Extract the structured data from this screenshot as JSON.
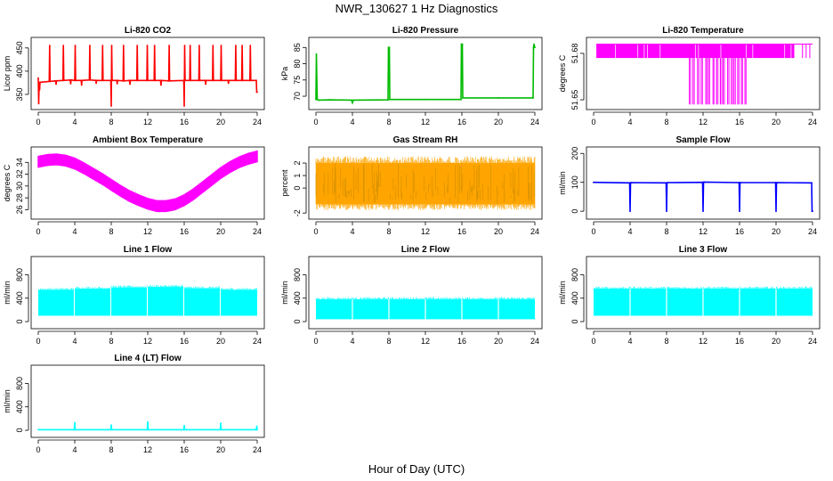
{
  "page": {
    "title": "NWR_130627  1 Hz Diagnostics",
    "xlabel": "Hour of Day (UTC)"
  },
  "chart_data": [
    {
      "type": "line",
      "title": "Li-820 CO2",
      "ylabel": "Licor ppm",
      "color": "#ff0000",
      "xlim": [
        0,
        24
      ],
      "xticks": [
        "0",
        "4",
        "8",
        "12",
        "16",
        "20",
        "24"
      ],
      "ylim": [
        325,
        465
      ],
      "yticks": [
        "350",
        "400",
        "450"
      ],
      "x": [
        0,
        0.05,
        0.1,
        0.15,
        0.2,
        1.2,
        1.25,
        1.3,
        1.9,
        1.95,
        2.0,
        2.7,
        2.75,
        2.8,
        3.5,
        3.55,
        3.6,
        4.0,
        4.05,
        4.1,
        4.7,
        4.75,
        4.8,
        5.6,
        5.65,
        5.7,
        6.3,
        6.35,
        6.4,
        7.0,
        7.05,
        7.1,
        7.95,
        8.0,
        8.05,
        8.1,
        8.6,
        8.65,
        8.7,
        9.3,
        9.35,
        9.4,
        10.0,
        10.05,
        10.1,
        10.8,
        10.85,
        10.9,
        11.9,
        11.95,
        12.0,
        12.7,
        12.75,
        12.8,
        13.4,
        13.45,
        13.5,
        14.3,
        14.35,
        14.4,
        15.95,
        16.0,
        16.05,
        16.1,
        16.6,
        16.65,
        16.7,
        17.6,
        17.65,
        17.7,
        18.3,
        18.35,
        18.4,
        19.1,
        19.15,
        19.2,
        20.0,
        20.05,
        20.1,
        20.8,
        20.85,
        20.9,
        21.6,
        21.65,
        21.7,
        22.3,
        22.35,
        22.4,
        23.2,
        23.25,
        23.3,
        23.9,
        23.95,
        24.0
      ],
      "y": [
        385,
        330,
        375,
        360,
        376,
        378,
        455,
        378,
        379,
        372,
        379,
        380,
        455,
        380,
        381,
        373,
        381,
        380,
        455,
        380,
        380,
        370,
        380,
        381,
        455,
        381,
        380,
        374,
        380,
        380,
        455,
        380,
        380,
        325,
        455,
        380,
        380,
        373,
        380,
        379,
        455,
        379,
        380,
        372,
        380,
        380,
        455,
        380,
        380,
        455,
        380,
        380,
        455,
        380,
        380,
        370,
        380,
        379,
        455,
        379,
        380,
        325,
        455,
        380,
        380,
        455,
        380,
        380,
        455,
        380,
        380,
        372,
        380,
        380,
        455,
        380,
        380,
        455,
        380,
        380,
        374,
        380,
        380,
        455,
        380,
        380,
        455,
        380,
        380,
        455,
        380,
        380,
        355,
        355
      ]
    },
    {
      "type": "line",
      "title": "Li-820 Pressure",
      "ylabel": "kPa",
      "color": "#00bb00",
      "xlim": [
        0,
        24
      ],
      "xticks": [
        "0",
        "4",
        "8",
        "12",
        "16",
        "20",
        "24"
      ],
      "ylim": [
        67,
        87
      ],
      "yticks": [
        "70",
        "75",
        "80",
        "85"
      ],
      "x": [
        0,
        0.05,
        0.1,
        0.15,
        0.3,
        1.5,
        3.9,
        4.0,
        4.1,
        7.9,
        7.95,
        8.05,
        8.1,
        12,
        15.9,
        15.95,
        16.0,
        16.05,
        16.1,
        20,
        23.8,
        23.85,
        23.9,
        24.0
      ],
      "y": [
        69,
        83,
        75,
        69,
        68.8,
        68.9,
        68.8,
        68,
        68.8,
        68.9,
        85,
        85,
        69,
        69,
        69,
        86,
        86,
        86,
        69.5,
        69.5,
        69.5,
        85,
        86,
        85
      ]
    },
    {
      "type": "line",
      "title": "Li-820 Temperature",
      "ylabel": "degrees C",
      "color": "#ff00ff",
      "xlim": [
        0,
        24
      ],
      "xticks": [
        "0",
        "4",
        "8",
        "12",
        "16",
        "20",
        "24"
      ],
      "ylim": [
        51.646,
        51.688
      ],
      "yticks": [
        "51.65",
        "51.68"
      ],
      "upper_band": [
        51.677,
        51.686
      ],
      "drop_value": 51.647,
      "drop_hours": [
        10.5,
        10.9,
        11.4,
        11.8,
        12.3,
        12.6,
        13.1,
        13.5,
        13.9,
        14.2,
        14.7,
        15.1,
        15.4,
        15.8,
        16.2,
        16.6
      ],
      "band_hours": [
        0.3,
        22.0
      ],
      "extra_spikes": [
        22.9,
        23.3,
        23.7
      ]
    },
    {
      "type": "area",
      "title": "Ambient Box Temperature",
      "ylabel": "degrees C",
      "color": "#ff00ff",
      "xlim": [
        0,
        24
      ],
      "xticks": [
        "0",
        "4",
        "8",
        "12",
        "16",
        "20",
        "24"
      ],
      "ylim": [
        25,
        36
      ],
      "yticks": [
        "26",
        "28",
        "30",
        "32",
        "34"
      ],
      "x": [
        0,
        1,
        2,
        3,
        4,
        5,
        6,
        7,
        8,
        9,
        10,
        11,
        12,
        13,
        14,
        15,
        16,
        17,
        18,
        19,
        20,
        21,
        22,
        23,
        24
      ],
      "y": [
        34.1,
        34.4,
        34.5,
        34.3,
        33.8,
        33.0,
        32.1,
        31.2,
        30.2,
        29.2,
        28.3,
        27.6,
        27.0,
        26.6,
        26.6,
        26.9,
        27.6,
        28.6,
        29.8,
        31.0,
        32.2,
        33.2,
        34.0,
        34.6,
        35.0
      ],
      "band_half_width": 0.9
    },
    {
      "type": "area",
      "title": "Gas Stream RH",
      "ylabel": "percent",
      "color": "#ffa500",
      "xlim": [
        0,
        24
      ],
      "xticks": [
        "0",
        "4",
        "8",
        "12",
        "16",
        "20",
        "24"
      ],
      "ylim": [
        -2.2,
        3.0
      ],
      "yticks": [
        "-2",
        "0",
        "1",
        "2"
      ],
      "band": [
        -1.3,
        2.0
      ],
      "noise_max": [
        2.9,
        -1.9
      ]
    },
    {
      "type": "line",
      "title": "Sample Flow",
      "ylabel": "ml/min",
      "color": "#0000ff",
      "xlim": [
        0,
        24
      ],
      "xticks": [
        "0",
        "4",
        "8",
        "12",
        "16",
        "20",
        "24"
      ],
      "ylim": [
        -15,
        210
      ],
      "yticks": [
        "0",
        "100",
        "200"
      ],
      "x": [
        0,
        3.95,
        4.0,
        4.05,
        4.1,
        7.95,
        8.0,
        8.05,
        8.1,
        11.95,
        12.0,
        12.05,
        12.1,
        15.95,
        16.0,
        16.05,
        16.1,
        19.95,
        20.0,
        20.05,
        20.1,
        23.9,
        23.95,
        24.0
      ],
      "y": [
        100,
        98,
        0,
        98,
        99,
        98,
        0,
        98,
        99,
        100,
        0,
        100,
        101,
        99,
        0,
        99,
        99,
        99,
        0,
        98,
        99,
        98,
        0,
        0
      ]
    },
    {
      "type": "area",
      "title": "Line 1 Flow",
      "ylabel": "ml/min",
      "color": "#00ffff",
      "xlim": [
        0,
        24
      ],
      "xticks": [
        "0",
        "4",
        "8",
        "12",
        "16",
        "20",
        "24"
      ],
      "ylim": [
        -60,
        1050
      ],
      "yticks": [
        "0",
        "400",
        "800"
      ],
      "band_low": 100,
      "segments": [
        {
          "start": 0.0,
          "end": 3.9,
          "top": 540
        },
        {
          "start": 4.0,
          "end": 7.9,
          "top": 560
        },
        {
          "start": 8.0,
          "end": 11.9,
          "top": 580
        },
        {
          "start": 12.0,
          "end": 15.9,
          "top": 590
        },
        {
          "start": 16.0,
          "end": 19.9,
          "top": 565
        },
        {
          "start": 20.0,
          "end": 24.0,
          "top": 540
        }
      ]
    },
    {
      "type": "area",
      "title": "Line 2 Flow",
      "ylabel": "ml/min",
      "color": "#00ffff",
      "xlim": [
        0,
        24
      ],
      "xticks": [
        "0",
        "4",
        "8",
        "12",
        "16",
        "20",
        "24"
      ],
      "ylim": [
        -60,
        1050
      ],
      "yticks": [
        "0",
        "400",
        "800"
      ],
      "band_low": 40,
      "segments": [
        {
          "start": 0.0,
          "end": 24.0,
          "top": 380
        }
      ],
      "notches": [
        4,
        8,
        12,
        16,
        20
      ]
    },
    {
      "type": "area",
      "title": "Line 3 Flow",
      "ylabel": "ml/min",
      "color": "#00ffff",
      "xlim": [
        0,
        24
      ],
      "xticks": [
        "0",
        "4",
        "8",
        "12",
        "16",
        "20",
        "24"
      ],
      "ylim": [
        -60,
        1050
      ],
      "yticks": [
        "0",
        "400",
        "800"
      ],
      "band_low": 100,
      "segments": [
        {
          "start": 0.0,
          "end": 24.0,
          "top": 560
        }
      ],
      "notches": [
        4,
        8,
        12,
        16,
        20
      ]
    },
    {
      "type": "line",
      "title": "Line 4 (LT) Flow",
      "ylabel": "ml/min",
      "color": "#00ffff",
      "xlim": [
        0,
        24
      ],
      "xticks": [
        "0",
        "4",
        "8",
        "12",
        "16",
        "20",
        "24"
      ],
      "ylim": [
        -60,
        1050
      ],
      "yticks": [
        "0",
        "400",
        "800"
      ],
      "x": [
        0,
        3.95,
        4.0,
        4.05,
        7.95,
        8.0,
        8.05,
        11.95,
        12.0,
        12.05,
        15.95,
        16.0,
        16.05,
        19.95,
        20.0,
        20.05,
        23.9,
        23.95,
        24.0
      ],
      "y": [
        10,
        10,
        130,
        10,
        10,
        90,
        10,
        10,
        140,
        10,
        10,
        80,
        10,
        10,
        120,
        10,
        10,
        70,
        10
      ]
    }
  ]
}
